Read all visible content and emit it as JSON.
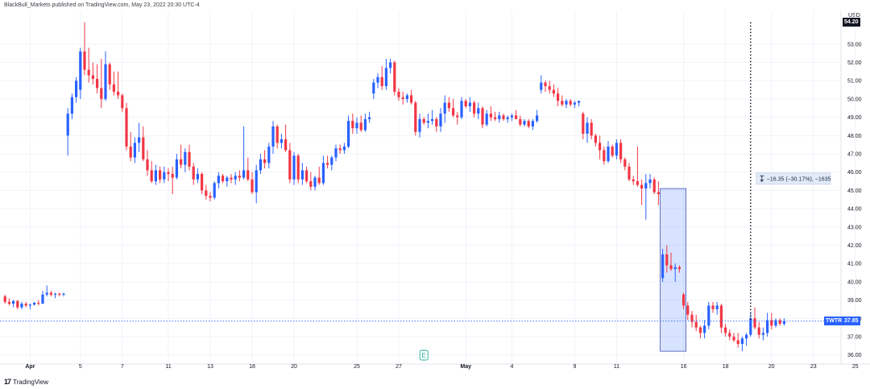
{
  "header": {
    "publisher_line": "BlackBull_Markets published on TradingView.com, May 23, 2022 20:30 UTC-4"
  },
  "price_axis": {
    "unit": "USD"
  },
  "last_price": {
    "symbol": "TWTR",
    "value": "37.85",
    "color": "#2962ff"
  },
  "marker_price": {
    "value": "54.20",
    "color": "#131722"
  },
  "measure": {
    "text": "−16.35 (−30.17%), −1635",
    "icon": "measure-arrows-icon",
    "color": "#b2c4e8"
  },
  "earnings_badge": {
    "label": "E",
    "icon": "earnings-icon",
    "color": "#22ab94"
  },
  "branding": {
    "logo_text": "TradingView",
    "logo_mark": "17"
  },
  "colors": {
    "up": "#2962ff",
    "down": "#f23645",
    "grid": "#f0f3fa",
    "last_line": "#2962ff"
  },
  "chart_data": {
    "type": "candlestick",
    "title": "",
    "xlabel": "",
    "ylabel": "",
    "ylim": [
      35.5,
      54.8
    ],
    "grid": true,
    "y_ticks": [
      "36.00",
      "37.00",
      "38.00",
      "39.00",
      "40.00",
      "41.00",
      "42.00",
      "43.00",
      "44.00",
      "45.00",
      "46.00",
      "47.00",
      "48.00",
      "49.00",
      "50.00",
      "51.00",
      "52.00",
      "53.00"
    ],
    "x_ticks": [
      {
        "label": "Apr",
        "index": 6,
        "bold": true
      },
      {
        "label": "5",
        "index": 18,
        "bold": false
      },
      {
        "label": "7",
        "index": 28,
        "bold": false
      },
      {
        "label": "11",
        "index": 39,
        "bold": false
      },
      {
        "label": "13",
        "index": 49,
        "bold": false
      },
      {
        "label": "18",
        "index": 59,
        "bold": false
      },
      {
        "label": "20",
        "index": 69,
        "bold": false
      },
      {
        "label": "25",
        "index": 84,
        "bold": false
      },
      {
        "label": "27",
        "index": 94,
        "bold": false
      },
      {
        "label": "May",
        "index": 110,
        "bold": true
      },
      {
        "label": "4",
        "index": 121,
        "bold": false
      },
      {
        "label": "9",
        "index": 136,
        "bold": false
      },
      {
        "label": "11",
        "index": 146,
        "bold": false
      },
      {
        "label": "16",
        "index": 162,
        "bold": false
      },
      {
        "label": "18",
        "index": 172,
        "bold": false
      },
      {
        "label": "20",
        "index": 183,
        "bold": false
      },
      {
        "label": "23",
        "index": 193,
        "bold": false
      },
      {
        "label": "25",
        "index": 203,
        "bold": false
      }
    ],
    "last_price": 37.85,
    "marker_price": 54.2,
    "measure_range": {
      "from_price": 45.1,
      "to_price": 36.2,
      "from_index": 157,
      "to_index": 162
    },
    "dotted_line": {
      "index": 178,
      "from_price": 54.2,
      "to_price": 37.85
    },
    "ohlc": [
      [
        39.2,
        39.3,
        38.8,
        38.9
      ],
      [
        38.9,
        39.1,
        38.7,
        38.8
      ],
      [
        38.8,
        39.0,
        38.6,
        38.95
      ],
      [
        38.95,
        39.0,
        38.5,
        38.6
      ],
      [
        38.6,
        38.9,
        38.5,
        38.8
      ],
      [
        38.8,
        38.9,
        38.6,
        38.7
      ],
      [
        38.7,
        38.8,
        38.5,
        38.75
      ],
      [
        38.75,
        38.9,
        38.7,
        38.85
      ],
      [
        38.85,
        39.0,
        38.7,
        38.8
      ],
      [
        38.8,
        39.5,
        38.8,
        39.3
      ],
      [
        39.3,
        39.8,
        39.2,
        39.4
      ],
      [
        39.4,
        39.5,
        39.2,
        39.3
      ],
      [
        39.3,
        39.4,
        39.1,
        39.35
      ],
      [
        39.35,
        39.4,
        39.2,
        39.3
      ],
      [
        39.3,
        39.4,
        39.2,
        39.35
      ],
      [
        48.0,
        49.5,
        46.9,
        49.2
      ],
      [
        49.2,
        50.3,
        48.9,
        50.1
      ],
      [
        50.1,
        51.2,
        49.8,
        51.0
      ],
      [
        50.5,
        52.8,
        50.0,
        52.6
      ],
      [
        52.6,
        54.2,
        51.3,
        51.6
      ],
      [
        51.6,
        52.8,
        50.9,
        51.3
      ],
      [
        51.3,
        52.0,
        50.8,
        51.1
      ],
      [
        51.1,
        51.9,
        50.3,
        50.6
      ],
      [
        50.6,
        52.2,
        49.5,
        50.0
      ],
      [
        50.0,
        52.6,
        49.9,
        51.9
      ],
      [
        51.9,
        52.0,
        50.5,
        50.8
      ],
      [
        50.8,
        51.5,
        50.2,
        50.4
      ],
      [
        50.4,
        51.5,
        50.0,
        50.2
      ],
      [
        50.2,
        50.3,
        49.3,
        49.5
      ],
      [
        49.5,
        49.8,
        47.2,
        47.4
      ],
      [
        47.4,
        48.2,
        46.6,
        46.8
      ],
      [
        46.8,
        47.9,
        46.5,
        47.6
      ],
      [
        47.6,
        48.7,
        47.1,
        47.9
      ],
      [
        47.9,
        48.5,
        46.6,
        46.7
      ],
      [
        46.7,
        47.2,
        45.8,
        46.1
      ],
      [
        46.1,
        46.6,
        45.4,
        45.5
      ],
      [
        45.5,
        46.4,
        45.3,
        46.1
      ],
      [
        46.1,
        46.3,
        45.4,
        45.6
      ],
      [
        45.6,
        46.3,
        45.4,
        46.0
      ],
      [
        46.0,
        46.2,
        45.5,
        45.9
      ],
      [
        45.9,
        46.3,
        44.8,
        45.7
      ],
      [
        45.7,
        47.0,
        45.6,
        46.7
      ],
      [
        46.7,
        47.5,
        46.2,
        46.4
      ],
      [
        46.4,
        47.3,
        46.0,
        47.1
      ],
      [
        47.1,
        47.5,
        46.1,
        46.3
      ],
      [
        46.3,
        46.5,
        45.3,
        45.6
      ],
      [
        45.6,
        46.2,
        45.4,
        45.9
      ],
      [
        45.9,
        46.0,
        44.8,
        45.0
      ],
      [
        45.0,
        45.3,
        44.5,
        44.7
      ],
      [
        44.7,
        44.9,
        44.4,
        44.6
      ],
      [
        44.6,
        45.5,
        44.5,
        45.4
      ],
      [
        45.4,
        46.0,
        45.1,
        45.8
      ],
      [
        45.8,
        45.9,
        45.4,
        45.5
      ],
      [
        45.5,
        45.8,
        45.2,
        45.7
      ],
      [
        45.7,
        45.9,
        45.4,
        45.6
      ],
      [
        45.6,
        46.0,
        45.3,
        45.8
      ],
      [
        45.8,
        46.1,
        45.5,
        45.7
      ],
      [
        45.7,
        48.5,
        45.6,
        46.1
      ],
      [
        46.1,
        46.8,
        45.5,
        45.6
      ],
      [
        45.6,
        46.0,
        44.8,
        44.9
      ],
      [
        44.9,
        46.4,
        44.3,
        46.1
      ],
      [
        46.1,
        47.0,
        45.9,
        46.7
      ],
      [
        46.7,
        47.2,
        46.2,
        46.5
      ],
      [
        46.5,
        47.6,
        46.2,
        47.4
      ],
      [
        47.4,
        48.8,
        47.0,
        48.5
      ],
      [
        48.5,
        48.6,
        47.3,
        47.6
      ],
      [
        47.6,
        48.1,
        47.3,
        47.8
      ],
      [
        47.8,
        48.6,
        47.1,
        47.2
      ],
      [
        47.2,
        47.6,
        45.4,
        45.6
      ],
      [
        45.6,
        47.1,
        45.3,
        46.9
      ],
      [
        46.9,
        47.0,
        45.4,
        45.6
      ],
      [
        45.6,
        46.5,
        45.3,
        46.1
      ],
      [
        46.1,
        46.3,
        45.4,
        45.5
      ],
      [
        45.5,
        46.0,
        45.0,
        45.2
      ],
      [
        45.2,
        45.8,
        45.0,
        45.7
      ],
      [
        45.7,
        46.3,
        45.3,
        45.4
      ],
      [
        45.4,
        46.9,
        45.3,
        46.5
      ],
      [
        46.5,
        46.9,
        46.2,
        46.4
      ],
      [
        46.4,
        46.9,
        46.1,
        46.8
      ],
      [
        46.8,
        47.5,
        46.6,
        47.3
      ],
      [
        47.3,
        47.5,
        47.0,
        47.2
      ],
      [
        47.2,
        47.6,
        47.0,
        47.4
      ],
      [
        47.4,
        49.1,
        47.3,
        48.8
      ],
      [
        48.8,
        49.2,
        48.1,
        48.4
      ],
      [
        48.4,
        49.0,
        48.1,
        48.7
      ],
      [
        48.7,
        49.1,
        48.2,
        48.3
      ],
      [
        48.3,
        49.2,
        48.2,
        48.9
      ],
      [
        48.9,
        49.3,
        48.7,
        49.0
      ],
      [
        50.3,
        51.1,
        50.0,
        50.9
      ],
      [
        50.9,
        51.4,
        50.6,
        51.2
      ],
      [
        51.2,
        51.8,
        50.5,
        50.7
      ],
      [
        50.7,
        52.2,
        50.5,
        51.7
      ],
      [
        51.7,
        52.2,
        51.4,
        52.0
      ],
      [
        52.0,
        52.1,
        50.2,
        50.4
      ],
      [
        50.4,
        50.6,
        49.9,
        50.1
      ],
      [
        50.1,
        50.4,
        49.7,
        50.0
      ],
      [
        50.0,
        50.3,
        49.8,
        50.2
      ],
      [
        50.2,
        50.5,
        49.7,
        49.8
      ],
      [
        49.8,
        49.9,
        48.0,
        48.2
      ],
      [
        48.2,
        49.2,
        47.9,
        48.9
      ],
      [
        48.9,
        49.0,
        48.6,
        48.7
      ],
      [
        48.7,
        49.2,
        48.4,
        48.8
      ],
      [
        48.8,
        49.4,
        48.6,
        48.9
      ],
      [
        48.9,
        49.0,
        48.2,
        48.5
      ],
      [
        48.5,
        49.5,
        48.2,
        49.2
      ],
      [
        49.2,
        50.2,
        48.7,
        49.8
      ],
      [
        49.8,
        50.1,
        49.3,
        49.5
      ],
      [
        49.5,
        50.0,
        49.0,
        49.1
      ],
      [
        49.1,
        49.3,
        48.6,
        49.0
      ],
      [
        49.0,
        50.1,
        48.9,
        49.9
      ],
      [
        49.9,
        50.0,
        49.5,
        49.6
      ],
      [
        49.6,
        50.1,
        49.3,
        49.8
      ],
      [
        49.8,
        49.9,
        49.0,
        49.2
      ],
      [
        49.2,
        49.8,
        48.9,
        49.5
      ],
      [
        49.5,
        49.6,
        48.4,
        48.6
      ],
      [
        48.6,
        49.4,
        48.5,
        49.2
      ],
      [
        49.2,
        49.6,
        48.8,
        49.0
      ],
      [
        49.0,
        49.3,
        48.8,
        48.9
      ],
      [
        48.9,
        49.3,
        48.7,
        49.1
      ],
      [
        49.1,
        49.2,
        48.8,
        48.9
      ],
      [
        48.9,
        49.1,
        48.7,
        49.0
      ],
      [
        49.0,
        49.2,
        48.8,
        49.1
      ],
      [
        49.1,
        49.4,
        48.9,
        48.9
      ],
      [
        48.9,
        49.1,
        48.5,
        48.6
      ],
      [
        48.6,
        48.9,
        48.5,
        48.8
      ],
      [
        48.8,
        48.9,
        48.4,
        48.5
      ],
      [
        48.5,
        48.9,
        48.3,
        48.8
      ],
      [
        48.8,
        49.4,
        48.7,
        49.1
      ],
      [
        50.5,
        51.3,
        50.3,
        50.9
      ],
      [
        50.9,
        51.0,
        50.4,
        50.7
      ],
      [
        50.7,
        51.0,
        50.3,
        50.5
      ],
      [
        50.5,
        50.8,
        50.1,
        50.3
      ],
      [
        50.3,
        50.6,
        49.6,
        49.9
      ],
      [
        49.9,
        50.2,
        49.6,
        49.7
      ],
      [
        49.7,
        50.0,
        49.5,
        49.9
      ],
      [
        49.9,
        50.0,
        49.6,
        49.7
      ],
      [
        49.7,
        49.9,
        49.5,
        49.8
      ],
      [
        49.8,
        49.9,
        49.6,
        49.9
      ],
      [
        49.2,
        49.3,
        47.8,
        48.1
      ],
      [
        48.1,
        49.0,
        47.6,
        48.7
      ],
      [
        48.7,
        48.9,
        47.8,
        48.0
      ],
      [
        48.0,
        48.1,
        47.4,
        47.6
      ],
      [
        47.6,
        48.0,
        46.7,
        47.2
      ],
      [
        47.2,
        47.4,
        46.4,
        46.6
      ],
      [
        46.6,
        47.7,
        46.5,
        47.4
      ],
      [
        47.4,
        47.5,
        46.8,
        46.9
      ],
      [
        46.9,
        47.8,
        46.7,
        47.6
      ],
      [
        47.6,
        47.8,
        46.5,
        46.7
      ],
      [
        46.7,
        46.8,
        46.1,
        46.3
      ],
      [
        46.3,
        46.5,
        45.5,
        45.6
      ],
      [
        45.6,
        45.8,
        45.3,
        45.5
      ],
      [
        45.5,
        47.4,
        45.2,
        45.3
      ],
      [
        45.3,
        45.6,
        44.2,
        45.1
      ],
      [
        45.1,
        45.9,
        43.4,
        45.4
      ],
      [
        45.4,
        45.9,
        45.1,
        45.6
      ],
      [
        45.6,
        45.7,
        44.8,
        44.9
      ],
      [
        44.9,
        45.5,
        44.2,
        44.8
      ],
      [
        40.2,
        41.8,
        40.0,
        41.5
      ],
      [
        41.5,
        42.0,
        40.5,
        40.9
      ],
      [
        40.9,
        41.6,
        40.6,
        40.7
      ],
      [
        40.7,
        41.0,
        40.0,
        40.8
      ],
      [
        40.8,
        40.9,
        40.5,
        40.7
      ],
      [
        39.3,
        39.4,
        38.5,
        38.7
      ],
      [
        38.7,
        38.9,
        37.9,
        38.2
      ],
      [
        38.2,
        38.4,
        37.5,
        37.8
      ],
      [
        37.8,
        38.2,
        37.3,
        37.5
      ],
      [
        37.5,
        37.6,
        36.9,
        37.2
      ],
      [
        37.2,
        37.9,
        36.9,
        37.6
      ],
      [
        37.6,
        38.9,
        37.4,
        38.7
      ],
      [
        38.7,
        38.9,
        38.3,
        38.5
      ],
      [
        38.5,
        38.9,
        38.2,
        38.7
      ],
      [
        38.7,
        38.8,
        37.2,
        37.5
      ],
      [
        37.5,
        37.7,
        37.0,
        37.2
      ],
      [
        37.2,
        37.4,
        36.8,
        37.0
      ],
      [
        37.0,
        37.2,
        36.7,
        36.8
      ],
      [
        36.8,
        37.2,
        36.4,
        36.6
      ],
      [
        36.6,
        37.0,
        36.2,
        36.9
      ],
      [
        36.9,
        37.2,
        36.5,
        37.1
      ],
      [
        37.1,
        38.3,
        37.0,
        38.0
      ],
      [
        38.0,
        38.6,
        37.4,
        37.5
      ],
      [
        37.5,
        37.8,
        36.9,
        37.1
      ],
      [
        37.1,
        37.5,
        36.8,
        37.2
      ],
      [
        37.2,
        38.3,
        37.0,
        37.9
      ],
      [
        37.9,
        38.3,
        37.4,
        37.6
      ],
      [
        37.6,
        38.0,
        37.5,
        37.9
      ],
      [
        37.9,
        38.0,
        37.6,
        37.7
      ],
      [
        37.7,
        38.0,
        37.6,
        37.85
      ]
    ]
  }
}
